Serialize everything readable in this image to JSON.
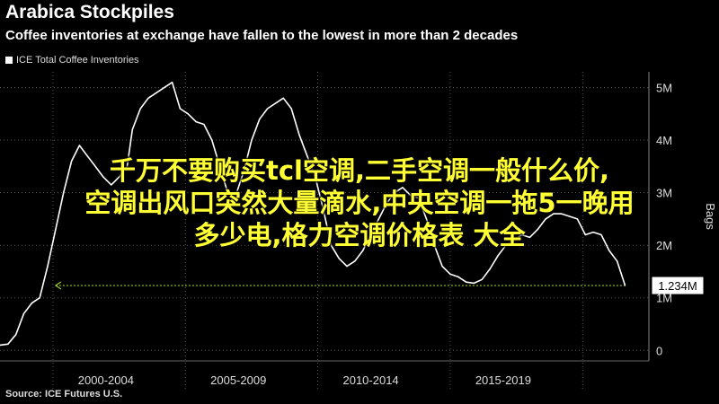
{
  "header": {
    "title": "Arabica Stockpiles",
    "subtitle": "Coffee inventories at exchange have fallen to the lowest in more than 2 decades",
    "legend_label": "ICE Total Coffee Inventories",
    "source": "Source: ICE Futures U.S."
  },
  "overlay": {
    "line1": "千万不要购买tcl空调,二手空调一般什么价,",
    "line2": "空调出风口突然大量滴水,中央空调一拖5一晚用",
    "line3": "多少电,格力空调价格表 大全",
    "color": "#ffff33"
  },
  "colors": {
    "background": "#000000",
    "series_line": "#ffffff",
    "reference_line": "#9acd32",
    "grid": "#555555"
  },
  "chart_data": {
    "type": "line",
    "title": "Arabica Stockpiles",
    "subtitle": "Coffee inventories at exchange have fallen to the lowest in more than 2 decades",
    "ylabel": "Bags",
    "ylim": [
      -0.2,
      5.3
    ],
    "xlim": [
      1998,
      2022.5
    ],
    "y_ticks": [
      0,
      1,
      2,
      3,
      4,
      5
    ],
    "y_tick_labels": [
      "0",
      "1M",
      "2M",
      "3M",
      "4M",
      "5M"
    ],
    "x_tick_labels": [
      "2000-2004",
      "2005-2009",
      "2010-2014",
      "2015-2019"
    ],
    "x_tick_label_centers": [
      2002,
      2007,
      2012,
      2017
    ],
    "x_dividers": [
      2000,
      2005,
      2010,
      2015,
      2020
    ],
    "grid": true,
    "last_value": 1.234,
    "last_value_label": "1.234M",
    "reference_line": {
      "y": 1.234,
      "x_start": 2000.1,
      "x_end": 2021.6,
      "style": "dotted",
      "arrow": "left"
    },
    "series": [
      {
        "name": "ICE Total Coffee Inventories",
        "x": [
          1998.0,
          1998.3,
          1998.6,
          1998.9,
          1999.2,
          1999.5,
          1999.8,
          2000.1,
          2000.4,
          2000.7,
          2001.0,
          2001.3,
          2001.6,
          2001.9,
          2002.2,
          2002.5,
          2002.8,
          2003.0,
          2003.3,
          2003.6,
          2003.9,
          2004.2,
          2004.5,
          2004.8,
          2005.1,
          2005.4,
          2005.7,
          2006.0,
          2006.3,
          2006.6,
          2006.9,
          2007.2,
          2007.5,
          2007.8,
          2008.1,
          2008.4,
          2008.7,
          2009.0,
          2009.3,
          2009.6,
          2009.9,
          2010.2,
          2010.5,
          2010.8,
          2011.1,
          2011.4,
          2011.7,
          2012.0,
          2012.3,
          2012.6,
          2012.9,
          2013.2,
          2013.5,
          2013.8,
          2014.1,
          2014.4,
          2014.7,
          2015.0,
          2015.3,
          2015.6,
          2015.9,
          2016.2,
          2016.5,
          2016.8,
          2017.1,
          2017.4,
          2017.7,
          2018.0,
          2018.3,
          2018.6,
          2018.9,
          2019.2,
          2019.5,
          2019.8,
          2020.1,
          2020.4,
          2020.7,
          2021.0,
          2021.3,
          2021.6
        ],
        "values": [
          0.1,
          0.12,
          0.3,
          0.7,
          0.9,
          1.0,
          1.6,
          2.3,
          3.0,
          3.6,
          3.9,
          3.7,
          3.5,
          3.3,
          3.15,
          3.3,
          3.5,
          4.2,
          4.6,
          4.8,
          4.9,
          5.0,
          5.1,
          4.6,
          4.5,
          4.35,
          4.3,
          4.0,
          3.5,
          3.0,
          2.95,
          3.4,
          4.0,
          4.4,
          4.6,
          4.7,
          4.8,
          4.6,
          4.1,
          3.7,
          3.3,
          2.7,
          2.0,
          1.75,
          1.6,
          1.7,
          1.9,
          2.2,
          2.5,
          2.8,
          3.0,
          3.1,
          2.95,
          2.9,
          2.5,
          2.0,
          1.6,
          1.45,
          1.4,
          1.3,
          1.28,
          1.35,
          1.55,
          1.8,
          2.0,
          2.1,
          2.2,
          2.15,
          2.3,
          2.5,
          2.6,
          2.6,
          2.55,
          2.5,
          2.2,
          2.25,
          2.2,
          1.9,
          1.7,
          1.234
        ]
      }
    ]
  }
}
